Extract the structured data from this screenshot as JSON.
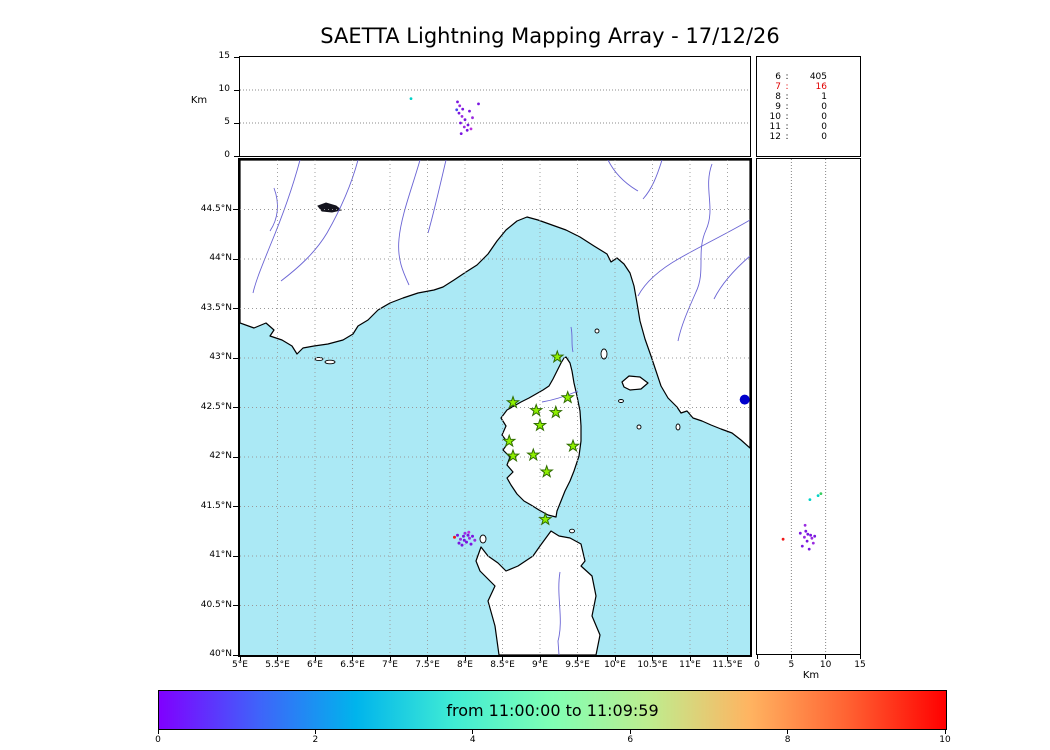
{
  "title": "SAETTA Lightning Mapping Array - 17/12/26",
  "colors": {
    "sea": "#abe9f5",
    "land": "#ffffff",
    "coast": "#000000",
    "river": "#6a64d4",
    "grid": "#999999",
    "star_fill": "#8ff000",
    "star_stroke": "#2f6b00",
    "city_dot": "#0000cc",
    "highlight": "#e00000",
    "points": {
      "purple": "#7a16e0",
      "violet": "#9a2ce0",
      "blue": "#4848f0",
      "cyan": "#00d2c8",
      "green": "#38cf60",
      "red": "#f01818",
      "magenta": "#bb30dd"
    }
  },
  "station_stats": {
    "rows": [
      {
        "id": "6",
        "count": "405",
        "highlight": false
      },
      {
        "id": "7",
        "count": "16",
        "highlight": true
      },
      {
        "id": "8",
        "count": "1",
        "highlight": false
      },
      {
        "id": "9",
        "count": "0",
        "highlight": false
      },
      {
        "id": "10",
        "count": "0",
        "highlight": false
      },
      {
        "id": "11",
        "count": "0",
        "highlight": false
      },
      {
        "id": "12",
        "count": "0",
        "highlight": false
      }
    ]
  },
  "colorbar": {
    "label": "from 11:00:00 to 11:09:59",
    "ticks": [
      {
        "v": 0,
        "label": "0"
      },
      {
        "v": 2,
        "label": "2"
      },
      {
        "v": 4,
        "label": "4"
      },
      {
        "v": 6,
        "label": "6"
      },
      {
        "v": 8,
        "label": "8"
      },
      {
        "v": 10,
        "label": "10"
      }
    ],
    "range_minutes": [
      0,
      10
    ],
    "gradient": [
      "#8000ff",
      "#4062fa",
      "#00b4ec",
      "#40ecd4",
      "#80ffb4",
      "#bfec8e",
      "#ffb461",
      "#ff6232",
      "#ff0000"
    ]
  },
  "chart_data": {
    "type": "scatter",
    "description": "Lightning mapping array: altitude-vs-longitude (top), map plan view (center), altitude-vs-latitude (right); points colored by time from 11:00:00 to 11:09:59",
    "alt_axis": {
      "label": "Km",
      "range": [
        0,
        15
      ],
      "ticks": [
        0,
        5,
        10,
        15
      ],
      "grid": [
        5,
        10
      ]
    },
    "map": {
      "lon_range": [
        5,
        11.8
      ],
      "lat_range": [
        40,
        45
      ],
      "lon_ticks": [
        {
          "v": 5,
          "label": "5°E"
        },
        {
          "v": 5.5,
          "label": "5.5°E"
        },
        {
          "v": 6,
          "label": "6°E"
        },
        {
          "v": 6.5,
          "label": "6.5°E"
        },
        {
          "v": 7,
          "label": "7°E"
        },
        {
          "v": 7.5,
          "label": "7.5°E"
        },
        {
          "v": 8,
          "label": "8°E"
        },
        {
          "v": 8.5,
          "label": "8.5°E"
        },
        {
          "v": 9,
          "label": "9°E"
        },
        {
          "v": 9.5,
          "label": "9.5°E"
        },
        {
          "v": 10,
          "label": "10°E"
        },
        {
          "v": 10.5,
          "label": "10.5°E"
        },
        {
          "v": 11,
          "label": "11°E"
        },
        {
          "v": 11.5,
          "label": "11.5°E"
        }
      ],
      "lat_ticks": [
        {
          "v": 44.5,
          "label": "44.5°N"
        },
        {
          "v": 44,
          "label": "44°N"
        },
        {
          "v": 43.5,
          "label": "43.5°N"
        },
        {
          "v": 43,
          "label": "43°N"
        },
        {
          "v": 42.5,
          "label": "42.5°N"
        },
        {
          "v": 42,
          "label": "42°N"
        },
        {
          "v": 41.5,
          "label": "41.5°N"
        },
        {
          "v": 41,
          "label": "41°N"
        },
        {
          "v": 40.5,
          "label": "40.5°N"
        },
        {
          "v": 40,
          "label": "40°N"
        }
      ],
      "stations": [
        {
          "lon": 9.23,
          "lat": 43.01
        },
        {
          "lon": 8.64,
          "lat": 42.55
        },
        {
          "lon": 8.95,
          "lat": 42.47
        },
        {
          "lon": 9.21,
          "lat": 42.45
        },
        {
          "lon": 9.37,
          "lat": 42.6
        },
        {
          "lon": 9.0,
          "lat": 42.32
        },
        {
          "lon": 8.59,
          "lat": 42.16
        },
        {
          "lon": 8.64,
          "lat": 42.01
        },
        {
          "lon": 8.91,
          "lat": 42.02
        },
        {
          "lon": 9.44,
          "lat": 42.11
        },
        {
          "lon": 9.09,
          "lat": 41.85
        },
        {
          "lon": 9.07,
          "lat": 41.37
        }
      ],
      "city_marker": {
        "lon": 11.73,
        "lat": 42.58
      },
      "sources": [
        {
          "lon": 7.9,
          "lat": 41.21,
          "c": "purple"
        },
        {
          "lon": 7.94,
          "lat": 41.17,
          "c": "violet"
        },
        {
          "lon": 7.98,
          "lat": 41.2,
          "c": "purple"
        },
        {
          "lon": 8.02,
          "lat": 41.14,
          "c": "purple"
        },
        {
          "lon": 8.06,
          "lat": 41.18,
          "c": "violet"
        },
        {
          "lon": 8.1,
          "lat": 41.2,
          "c": "purple"
        },
        {
          "lon": 7.96,
          "lat": 41.11,
          "c": "purple"
        },
        {
          "lon": 8.0,
          "lat": 41.23,
          "c": "violet"
        },
        {
          "lon": 8.04,
          "lat": 41.21,
          "c": "purple"
        },
        {
          "lon": 7.92,
          "lat": 41.13,
          "c": "purple"
        },
        {
          "lon": 8.08,
          "lat": 41.12,
          "c": "purple"
        },
        {
          "lon": 8.13,
          "lat": 41.16,
          "c": "violet"
        },
        {
          "lon": 7.99,
          "lat": 41.16,
          "c": "purple"
        },
        {
          "lon": 7.86,
          "lat": 41.19,
          "c": "red"
        },
        {
          "lon": 8.05,
          "lat": 41.24,
          "c": "magenta"
        }
      ]
    },
    "alt_vs_lon": {
      "points": [
        {
          "x": 7.28,
          "y": 8.7,
          "c": "cyan"
        },
        {
          "x": 7.89,
          "y": 7.0,
          "c": "blue"
        },
        {
          "x": 7.9,
          "y": 8.2,
          "c": "purple"
        },
        {
          "x": 7.93,
          "y": 7.6,
          "c": "violet"
        },
        {
          "x": 7.97,
          "y": 7.1,
          "c": "purple"
        },
        {
          "x": 7.92,
          "y": 6.5,
          "c": "purple"
        },
        {
          "x": 7.96,
          "y": 6.0,
          "c": "violet"
        },
        {
          "x": 8.0,
          "y": 5.5,
          "c": "purple"
        },
        {
          "x": 7.94,
          "y": 5.0,
          "c": "purple"
        },
        {
          "x": 7.99,
          "y": 4.4,
          "c": "violet"
        },
        {
          "x": 8.03,
          "y": 3.9,
          "c": "purple"
        },
        {
          "x": 7.95,
          "y": 3.4,
          "c": "purple"
        },
        {
          "x": 8.06,
          "y": 6.8,
          "c": "purple"
        },
        {
          "x": 8.1,
          "y": 5.8,
          "c": "violet"
        },
        {
          "x": 8.04,
          "y": 4.7,
          "c": "purple"
        },
        {
          "x": 8.18,
          "y": 7.9,
          "c": "purple"
        },
        {
          "x": 8.08,
          "y": 4.1,
          "c": "magenta"
        }
      ]
    },
    "alt_vs_lat": {
      "points": [
        {
          "x": 3.8,
          "y": 41.16,
          "c": "red"
        },
        {
          "x": 6.3,
          "y": 41.22,
          "c": "purple"
        },
        {
          "x": 6.9,
          "y": 41.18,
          "c": "violet"
        },
        {
          "x": 7.3,
          "y": 41.14,
          "c": "purple"
        },
        {
          "x": 7.8,
          "y": 41.2,
          "c": "purple"
        },
        {
          "x": 8.2,
          "y": 41.12,
          "c": "violet"
        },
        {
          "x": 6.6,
          "y": 41.09,
          "c": "purple"
        },
        {
          "x": 7.1,
          "y": 41.24,
          "c": "purple"
        },
        {
          "x": 8.0,
          "y": 41.17,
          "c": "violet"
        },
        {
          "x": 7.6,
          "y": 41.06,
          "c": "purple"
        },
        {
          "x": 8.4,
          "y": 41.19,
          "c": "purple"
        },
        {
          "x": 7.0,
          "y": 41.3,
          "c": "violet"
        },
        {
          "x": 7.4,
          "y": 41.21,
          "c": "purple"
        },
        {
          "x": 7.7,
          "y": 41.56,
          "c": "cyan"
        },
        {
          "x": 8.9,
          "y": 41.6,
          "c": "cyan"
        },
        {
          "x": 9.3,
          "y": 41.62,
          "c": "green"
        }
      ]
    }
  }
}
